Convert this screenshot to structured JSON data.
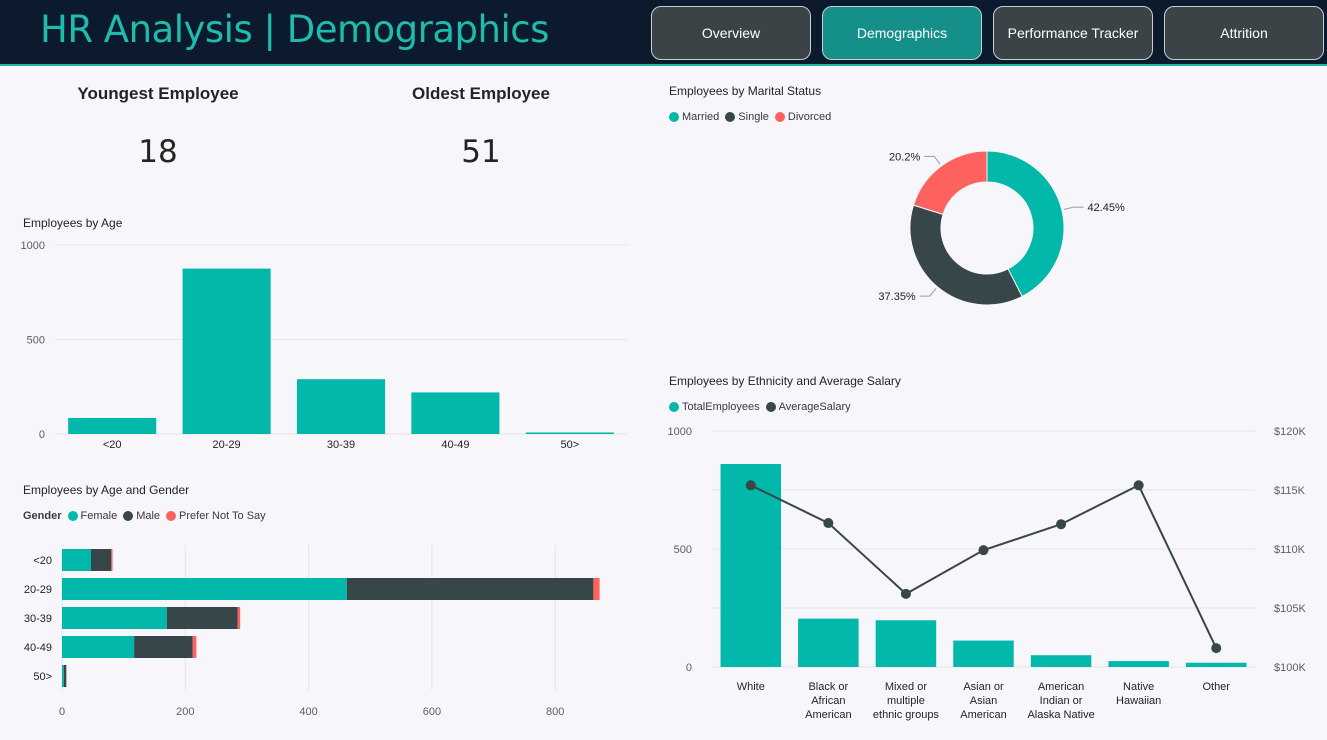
{
  "header": {
    "title": "HR Analysis | Demographics",
    "nav": [
      {
        "label": "Overview",
        "active": false
      },
      {
        "label": "Demographics",
        "active": true
      },
      {
        "label": "Performance Tracker",
        "active": false
      },
      {
        "label": "Attrition",
        "active": false
      }
    ]
  },
  "kpis": {
    "youngest": {
      "title": "Youngest Employee",
      "value": "18"
    },
    "oldest": {
      "title": "Oldest Employee",
      "value": "51"
    }
  },
  "colors": {
    "teal": "#01b8aa",
    "dark": "#374649",
    "red": "#fd625e"
  },
  "chart_data": [
    {
      "id": "age",
      "type": "bar",
      "title": "Employees by Age",
      "categories": [
        "<20",
        "20-29",
        "30-39",
        "40-49",
        "50>"
      ],
      "values": [
        85,
        875,
        290,
        220,
        8
      ],
      "ylim": [
        0,
        1000
      ],
      "yticks": [
        "0",
        "500",
        "1000"
      ]
    },
    {
      "id": "age_gender",
      "type": "bar",
      "orientation": "horizontal",
      "stacked": true,
      "title": "Employees by Age and Gender",
      "legend_label": "Gender",
      "categories": [
        "<20",
        "20-29",
        "30-39",
        "40-49",
        "50>"
      ],
      "series": [
        {
          "name": "Female",
          "values": [
            47,
            462,
            170,
            117,
            3
          ]
        },
        {
          "name": "Male",
          "values": [
            33,
            400,
            115,
            95,
            4
          ]
        },
        {
          "name": "Prefer Not To Say",
          "values": [
            2,
            10,
            4,
            6,
            0
          ]
        }
      ],
      "xlim": [
        0,
        880
      ],
      "xticks": [
        "0",
        "200",
        "400",
        "600",
        "800"
      ]
    },
    {
      "id": "marital",
      "type": "pie",
      "donut": true,
      "title": "Employees by Marital Status",
      "labels": [
        "Married",
        "Single",
        "Divorced"
      ],
      "values": [
        42.45,
        37.35,
        20.2
      ],
      "value_labels": [
        "42.45%",
        "37.35%",
        "20.2%"
      ]
    },
    {
      "id": "ethnicity",
      "type": "bar",
      "combo": "bar+line",
      "title": "Employees by Ethnicity and Average Salary",
      "categories": [
        "White",
        "Black or African American",
        "Mixed or multiple ethnic groups",
        "Asian or Asian American",
        "American Indian or Alaska Native",
        "Native Hawaiian",
        "Other"
      ],
      "category_lines": [
        [
          "White"
        ],
        [
          "Black or",
          "African",
          "American"
        ],
        [
          "Mixed or",
          "multiple",
          "ethnic groups"
        ],
        [
          "Asian or",
          "Asian",
          "American"
        ],
        [
          "American",
          "Indian or",
          "Alaska Native"
        ],
        [
          "Native",
          "Hawaiian"
        ],
        [
          "Other"
        ]
      ],
      "series": [
        {
          "name": "TotalEmployees",
          "type": "bar",
          "axis": "left",
          "values": [
            860,
            205,
            198,
            112,
            50,
            25,
            18
          ]
        },
        {
          "name": "AverageSalary",
          "type": "line",
          "axis": "right",
          "values": [
            115400,
            112200,
            106200,
            109900,
            112100,
            115400,
            101600
          ]
        }
      ],
      "ylim": [
        0,
        1000
      ],
      "yticks": [
        "0",
        "500",
        "1000"
      ],
      "y2lim": [
        100000,
        120000
      ],
      "y2ticks": [
        "$100K",
        "$105K",
        "$110K",
        "$115K",
        "$120K"
      ]
    }
  ]
}
